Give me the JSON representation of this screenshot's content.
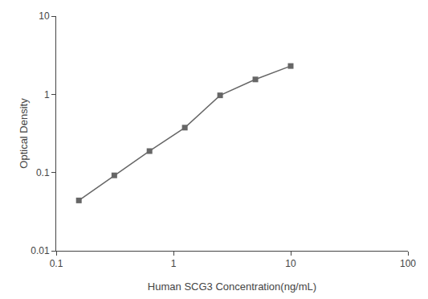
{
  "chart_data": {
    "type": "line",
    "x": [
      0.156,
      0.313,
      0.625,
      1.25,
      2.5,
      5.0,
      10.0
    ],
    "values": [
      0.044,
      0.092,
      0.188,
      0.375,
      0.97,
      1.55,
      2.3
    ],
    "xlabel": "Human SCG3 Concentration(ng/mL)",
    "ylabel": "Optical Density",
    "xlim": [
      0.1,
      100
    ],
    "ylim": [
      0.01,
      10
    ],
    "xticks": [
      0.1,
      1,
      10,
      100
    ],
    "yticks": [
      0.01,
      0.1,
      1,
      10
    ],
    "log": true,
    "grid": false,
    "color": "#666666",
    "marker": "square"
  }
}
